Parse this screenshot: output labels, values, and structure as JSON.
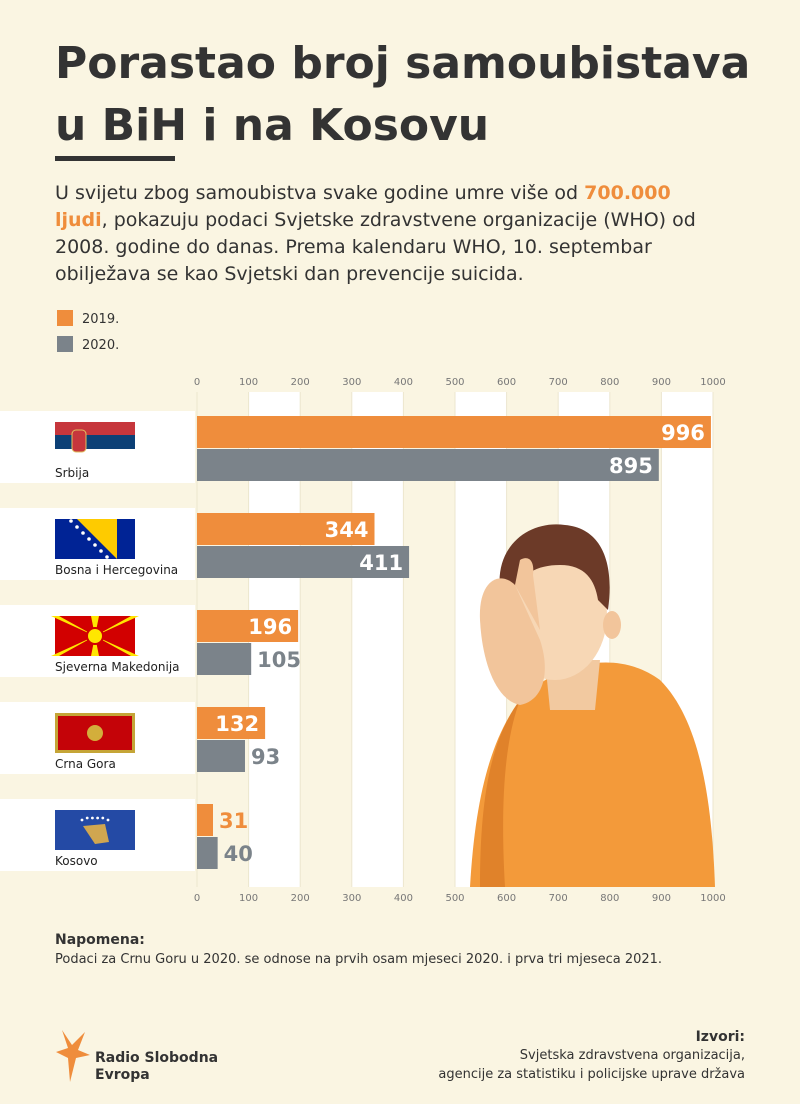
{
  "chart_data": {
    "type": "bar",
    "orientation": "horizontal",
    "title": [
      "Porastao broj samoubistava",
      "u BiH i na Kosovu"
    ],
    "intro": [
      "U svijetu zbog samoubistva svake godine umre više od ",
      "700.000 ljudi",
      ", pokazuju podaci Svjetske zdravstvene organizacije (WHO) od 2008. godine do danas. Prema kalendaru WHO, 10. septembar obilježava se kao Svjetski dan prevencije suicida."
    ],
    "categories": [
      "Srbija",
      "Bosna i Hercegovina",
      "Sjeverna Makedonija",
      "Crna Gora",
      "Kosovo"
    ],
    "series": [
      {
        "name": "2019.",
        "color": "#ef8d3c",
        "values": [
          996,
          344,
          196,
          132,
          31
        ]
      },
      {
        "name": "2020.",
        "color": "#7b838a",
        "values": [
          895,
          411,
          105,
          93,
          40
        ]
      }
    ],
    "xlim": [
      0,
      1000
    ],
    "xticks": [
      0,
      100,
      200,
      300,
      400,
      500,
      600,
      700,
      800,
      900,
      1000
    ],
    "legend": "top-left"
  },
  "note": {
    "title": "Napomena:",
    "text": "Podaci za Crnu Goru u 2020. se odnose na prvih osam mjeseci 2020. i prva tri mjeseca 2021."
  },
  "sources": {
    "title": "Izvori:",
    "lines": [
      "Svjetska zdravstvena organizacija,",
      "agencije za statistiku i policijske uprave država"
    ]
  },
  "logo": [
    "Radio Slobodna",
    "Evropa"
  ]
}
